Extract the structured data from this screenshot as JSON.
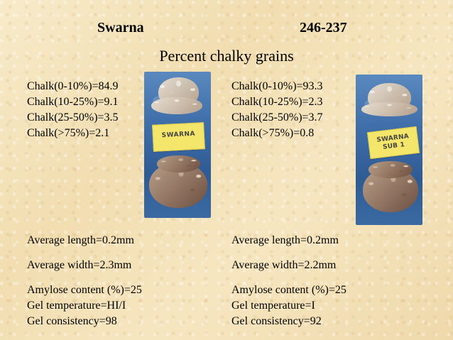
{
  "header": {
    "left_title": "Swarna",
    "right_title": "246-237",
    "subtitle": "Percent chalky grains"
  },
  "left": {
    "chalk": [
      "Chalk(0-10%)=84.9",
      "Chalk(10-25%)=9.1",
      "Chalk(25-50%)=3.5",
      "Chalk(>75%)=2.1"
    ],
    "length": "Average length=0.2mm",
    "width": "Average width=2.3mm",
    "properties": [
      "Amylose content (%)=25",
      "Gel temperature=HI/I",
      "Gel consistency=98"
    ],
    "photo_tag": "SWARNA"
  },
  "right": {
    "chalk": [
      "Chalk(0-10%)=93.3",
      "Chalk(10-25%)=2.3",
      "Chalk(25-50%)=3.7",
      "Chalk(>75%)=0.8"
    ],
    "length": "Average length=0.2mm",
    "width": "Average width=2.2mm",
    "properties": [
      "Amylose content (%)=25",
      "Gel temperature=I",
      "Gel consistency=92"
    ],
    "photo_tag_line1": "SWARNA",
    "photo_tag_line2": "SUB 1"
  }
}
